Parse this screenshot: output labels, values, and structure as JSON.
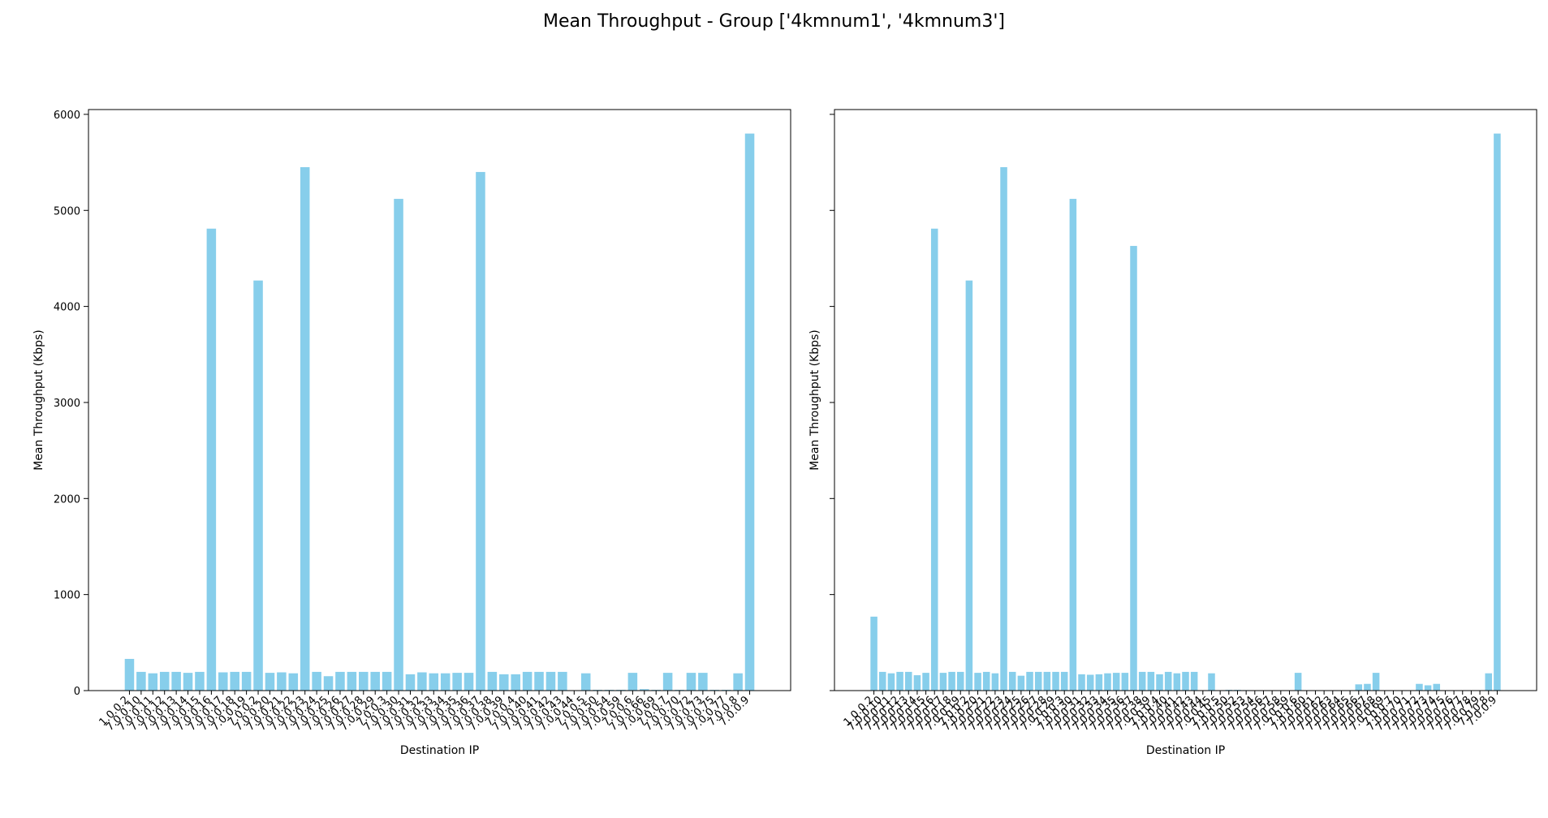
{
  "figure": {
    "title": "Mean Throughput - Group ['4kmnum1', '4kmnum3']"
  },
  "colors": {
    "bar": "#87ceeb",
    "axis": "#000000"
  },
  "chart_data": [
    {
      "type": "bar",
      "xlabel": "Destination IP",
      "ylabel": "Mean Throughput (Kbps)",
      "ylim": [
        0,
        6050
      ],
      "yticks": [
        0,
        1000,
        2000,
        3000,
        4000,
        5000,
        6000
      ],
      "grid": false,
      "categories": [
        "1.0.0.2",
        "7.0.0.10",
        "7.0.0.11",
        "7.0.0.12",
        "7.0.0.13",
        "7.0.0.14",
        "7.0.0.15",
        "7.0.0.16",
        "7.0.0.17",
        "7.0.0.18",
        "7.0.0.19",
        "7.0.0.2",
        "7.0.0.20",
        "7.0.0.21",
        "7.0.0.22",
        "7.0.0.23",
        "7.0.0.24",
        "7.0.0.25",
        "7.0.0.26",
        "7.0.0.27",
        "7.0.0.28",
        "7.0.0.29",
        "7.0.0.3",
        "7.0.0.30",
        "7.0.0.31",
        "7.0.0.32",
        "7.0.0.33",
        "7.0.0.34",
        "7.0.0.35",
        "7.0.0.36",
        "7.0.0.37",
        "7.0.0.38",
        "7.0.0.39",
        "7.0.0.4",
        "7.0.0.40",
        "7.0.0.41",
        "7.0.0.42",
        "7.0.0.43",
        "7.0.0.44",
        "7.0.0.5",
        "7.0.0.50",
        "7.0.0.54",
        "7.0.0.59",
        "7.0.0.6",
        "7.0.0.66",
        "7.0.0.69",
        "7.0.0.7",
        "7.0.0.70",
        "7.0.0.72",
        "7.0.0.73",
        "7.0.0.75",
        "7.0.0.77",
        "7.0.0.8",
        "7.0.0.9"
      ],
      "values": [
        330,
        195,
        180,
        195,
        195,
        185,
        195,
        4810,
        190,
        195,
        195,
        4270,
        185,
        190,
        180,
        5450,
        195,
        150,
        195,
        195,
        195,
        195,
        195,
        5120,
        170,
        190,
        180,
        180,
        185,
        185,
        5400,
        195,
        170,
        170,
        195,
        195,
        195,
        195,
        0,
        180,
        8,
        8,
        8,
        185,
        15,
        8,
        185,
        8,
        185,
        185,
        8,
        8,
        180,
        5800
      ]
    },
    {
      "type": "bar",
      "xlabel": "Destination IP",
      "ylabel": "Mean Throughput (Kbps)",
      "ylim": [
        0,
        6050
      ],
      "yticks": [
        0,
        1000,
        2000,
        3000,
        4000,
        5000,
        6000
      ],
      "grid": false,
      "categories": [
        "1.0.0.2",
        "7.0.0.10",
        "7.0.0.11",
        "7.0.0.12",
        "7.0.0.13",
        "7.0.0.14",
        "7.0.0.15",
        "7.0.0.16",
        "7.0.0.17",
        "7.0.0.18",
        "7.0.0.19",
        "7.0.0.2",
        "7.0.0.20",
        "7.0.0.21",
        "7.0.0.22",
        "7.0.0.23",
        "7.0.0.24",
        "7.0.0.25",
        "7.0.0.26",
        "7.0.0.27",
        "7.0.0.28",
        "7.0.0.29",
        "7.0.0.3",
        "7.0.0.30",
        "7.0.0.31",
        "7.0.0.32",
        "7.0.0.33",
        "7.0.0.34",
        "7.0.0.35",
        "7.0.0.36",
        "7.0.0.37",
        "7.0.0.38",
        "7.0.0.39",
        "7.0.0.4",
        "7.0.0.40",
        "7.0.0.41",
        "7.0.0.42",
        "7.0.0.43",
        "7.0.0.44",
        "7.0.0.45",
        "7.0.0.5",
        "7.0.0.50",
        "7.0.0.52",
        "7.0.0.53",
        "7.0.0.54",
        "7.0.0.56",
        "7.0.0.57",
        "7.0.0.58",
        "7.0.0.59",
        "7.0.0.6",
        "7.0.0.60",
        "7.0.0.61",
        "7.0.0.62",
        "7.0.0.63",
        "7.0.0.64",
        "7.0.0.65",
        "7.0.0.66",
        "7.0.0.67",
        "7.0.0.68",
        "7.0.0.69",
        "7.0.0.7",
        "7.0.0.70",
        "7.0.0.71",
        "7.0.0.72",
        "7.0.0.73",
        "7.0.0.74",
        "7.0.0.75",
        "7.0.0.76",
        "7.0.0.77",
        "7.0.0.78",
        "7.0.0.79",
        "7.0.0.8",
        "7.0.0.9"
      ],
      "values": [
        770,
        195,
        180,
        195,
        195,
        160,
        185,
        4810,
        185,
        195,
        195,
        4270,
        185,
        195,
        180,
        5450,
        195,
        155,
        195,
        195,
        195,
        195,
        195,
        5120,
        170,
        165,
        170,
        180,
        185,
        185,
        4630,
        195,
        195,
        170,
        195,
        180,
        195,
        195,
        0,
        180,
        0,
        8,
        8,
        5,
        0,
        0,
        0,
        0,
        0,
        185,
        0,
        0,
        0,
        0,
        0,
        0,
        65,
        70,
        185,
        0,
        0,
        0,
        0,
        70,
        55,
        70,
        0,
        0,
        0,
        0,
        0,
        180,
        5800
      ]
    }
  ]
}
